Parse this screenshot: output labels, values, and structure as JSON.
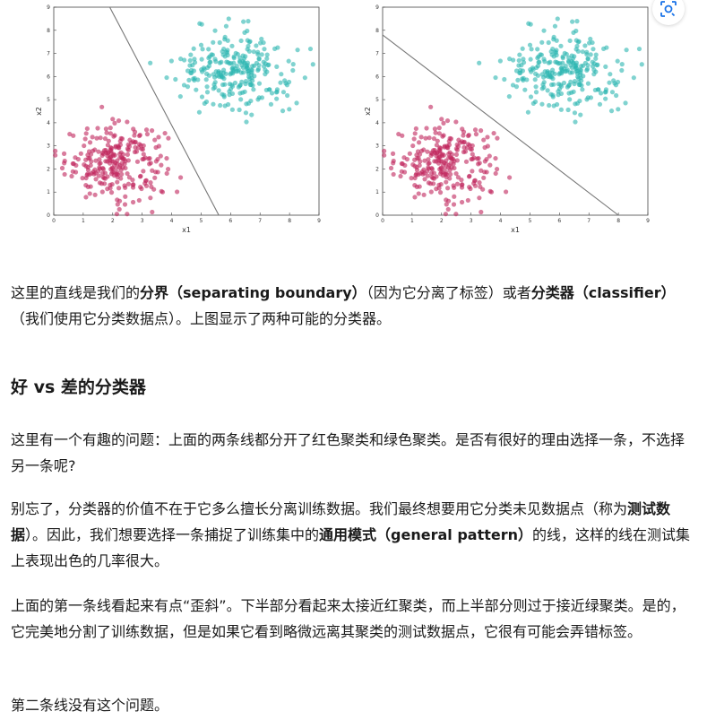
{
  "chart_data": [
    {
      "type": "scatter",
      "xlabel": "x1",
      "ylabel": "x2",
      "xlim": [
        0,
        9
      ],
      "ylim": [
        0,
        9
      ],
      "xticks": [
        "0",
        "1",
        "2",
        "3",
        "4",
        "5",
        "6",
        "7",
        "8",
        "9"
      ],
      "yticks": [
        "0",
        "1",
        "2",
        "3",
        "4",
        "5",
        "6",
        "7",
        "8",
        "9"
      ],
      "series": [
        {
          "color": "#c0245c",
          "center": [
            2.1,
            2.3
          ],
          "spread": [
            0.85,
            0.8
          ],
          "count": 260
        },
        {
          "color": "#2bb5b1",
          "center": [
            6.2,
            6.3
          ],
          "spread": [
            0.95,
            0.85
          ],
          "count": 260
        }
      ],
      "boundary": {
        "x": [
          1.9,
          5.6
        ],
        "y": [
          9.0,
          0.0
        ]
      },
      "grid": false
    },
    {
      "type": "scatter",
      "xlabel": "x1",
      "ylabel": "x2",
      "xlim": [
        0,
        9
      ],
      "ylim": [
        0,
        9
      ],
      "xticks": [
        "0",
        "1",
        "2",
        "3",
        "4",
        "5",
        "6",
        "7",
        "8",
        "9"
      ],
      "yticks": [
        "0",
        "1",
        "2",
        "3",
        "4",
        "5",
        "6",
        "7",
        "8",
        "9"
      ],
      "series": [
        {
          "color": "#c0245c",
          "center": [
            2.1,
            2.3
          ],
          "spread": [
            0.85,
            0.8
          ],
          "count": 260
        },
        {
          "color": "#2bb5b1",
          "center": [
            6.2,
            6.3
          ],
          "spread": [
            0.95,
            0.85
          ],
          "count": 260
        }
      ],
      "boundary": {
        "x": [
          0.0,
          8.0
        ],
        "y": [
          7.8,
          0.0
        ]
      },
      "grid": false
    }
  ],
  "p1": {
    "a": "这里的直线是我们的",
    "b": "分界（separating boundary）",
    "c": "（因为它分离了标签）或者",
    "d": "分类器（classifier）",
    "e": "（我们使用它分类数据点）。上图显示了两种可能的分类器。"
  },
  "heading": "好 vs 差的分类器",
  "p2": "这里有一个有趣的问题：上面的两条线都分开了红色聚类和绿色聚类。是否有很好的理由选择一条，不选择另一条呢?",
  "p3": {
    "a": "别忘了，分类器的价值不在于它多么擅长分离训练数据。我们最终想要用它分类未见数据点（称为",
    "b": "测试数据",
    "c": "）。因此，我们想要选择一条捕捉了训练集中的",
    "d": "通用模式（general pattern）",
    "e": "的线，这样的线在测试集上表现出色的几率很大。"
  },
  "p4": "上面的第一条线看起来有点“歪斜”。下半部分看起来太接近红聚类，而上半部分则过于接近绿聚类。是的，它完美地分割了训练数据，但是如果它看到略微远离其聚类的测试数据点，它很有可能会弄错标签。",
  "p5": "第二条线没有这个问题。"
}
